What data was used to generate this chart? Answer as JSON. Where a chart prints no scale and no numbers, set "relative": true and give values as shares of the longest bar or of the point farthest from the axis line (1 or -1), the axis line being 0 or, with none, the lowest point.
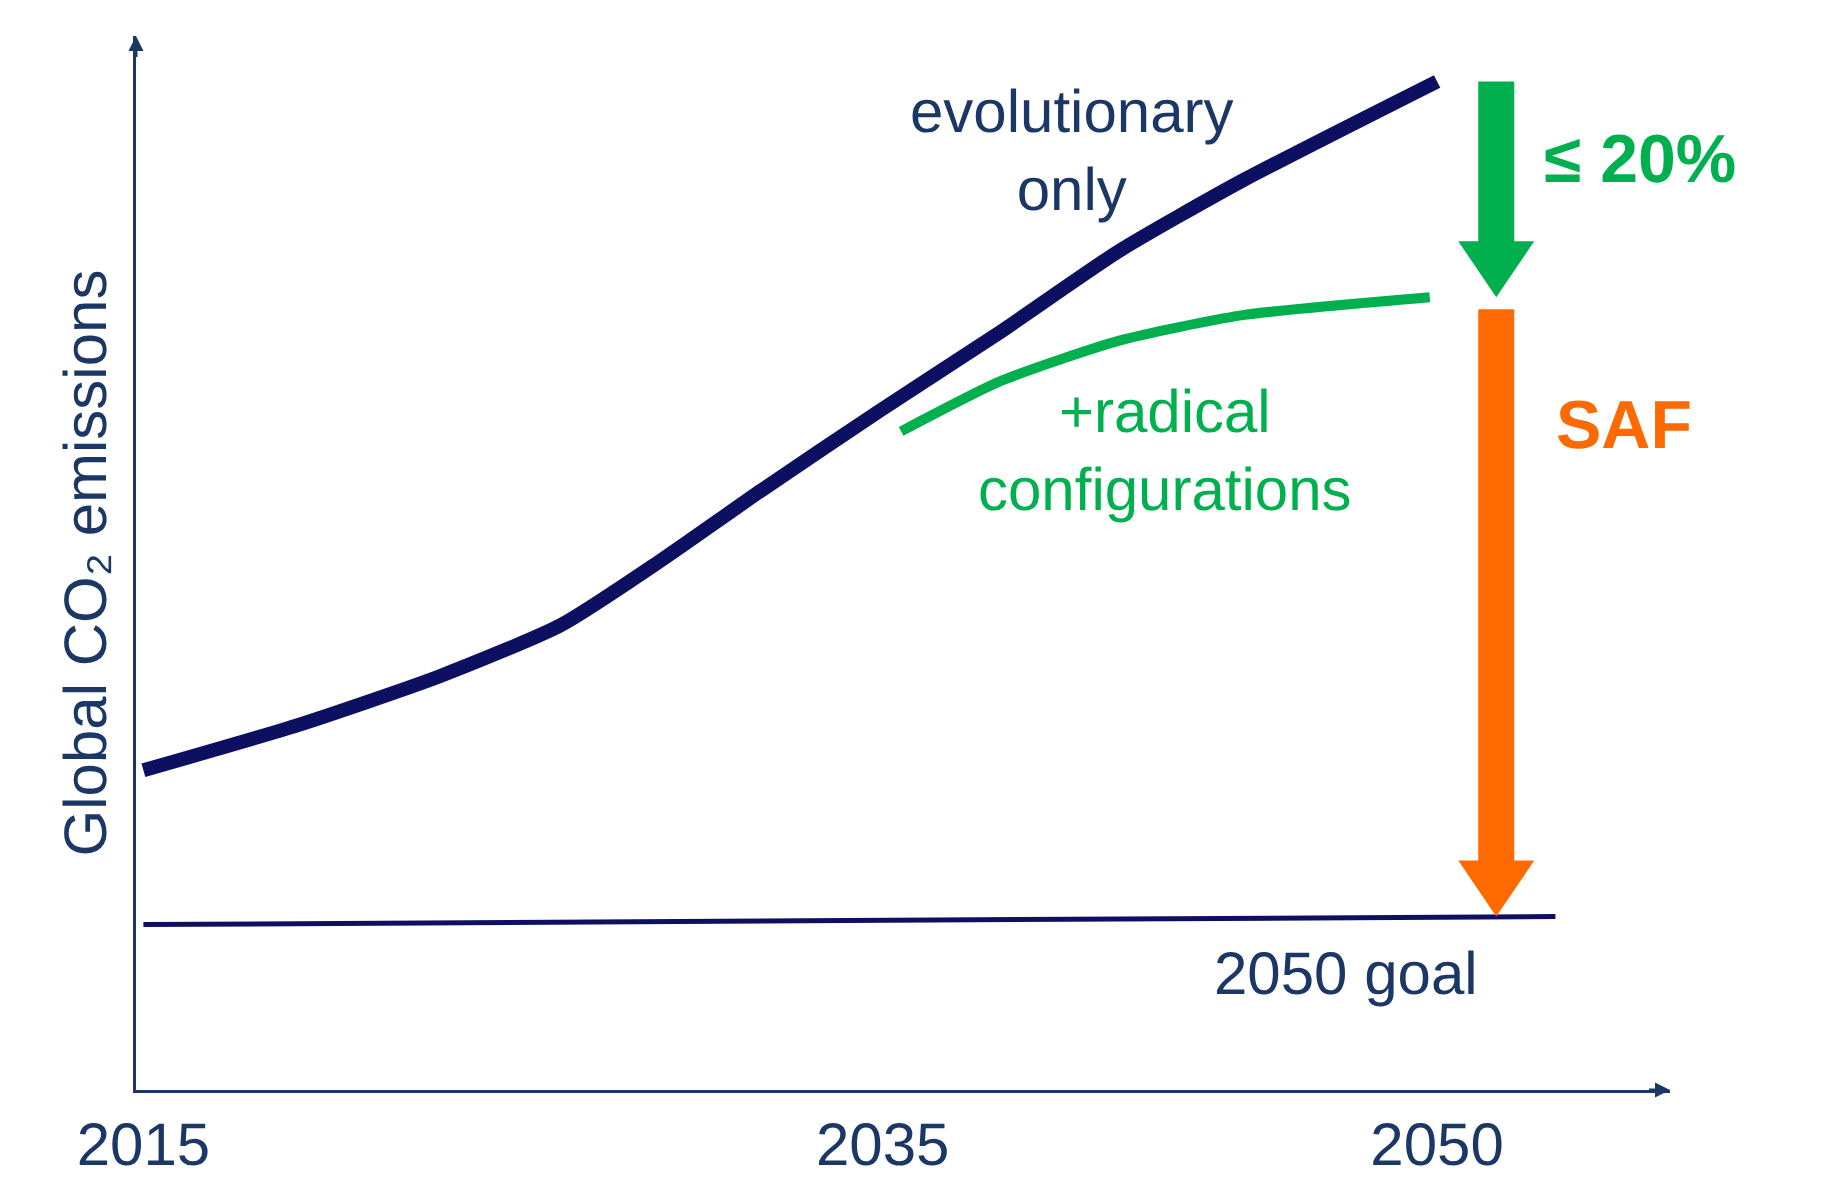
{
  "chart_data": {
    "type": "line",
    "relative": true,
    "ylabel": "Global CO₂ emissions",
    "xlim": [
      2014.8,
      2056.3
    ],
    "xticks": [
      2015,
      2035,
      2050
    ],
    "grid": false,
    "legend": false,
    "marker": "none",
    "line_style": "solid",
    "series": [
      {
        "name": "evolutionary only",
        "color": "#0d1060",
        "x": [
          2015,
          2019.2,
          2023.0,
          2026.3,
          2029.0,
          2031.7,
          2034.9,
          2038.2,
          2041.4,
          2044.7,
          2050
        ],
        "values": [
          0.317,
          0.362,
          0.41,
          0.461,
          0.525,
          0.594,
          0.673,
          0.752,
          0.832,
          0.901,
          1
        ]
      },
      {
        "name": "+radical configurations",
        "color": "#00b04f",
        "x": [
          2035.5,
          2038.2,
          2041.4,
          2044.7,
          2049.8
        ],
        "values": [
          0.653,
          0.703,
          0.743,
          0.768,
          0.786
        ]
      },
      {
        "name": "2050 goal",
        "color": "#0d1060",
        "x": [
          2015,
          2053.2
        ],
        "values": [
          0.164,
          0.172
        ]
      }
    ],
    "annotations": [
      "≤ 20%",
      "SAF"
    ]
  }
}
